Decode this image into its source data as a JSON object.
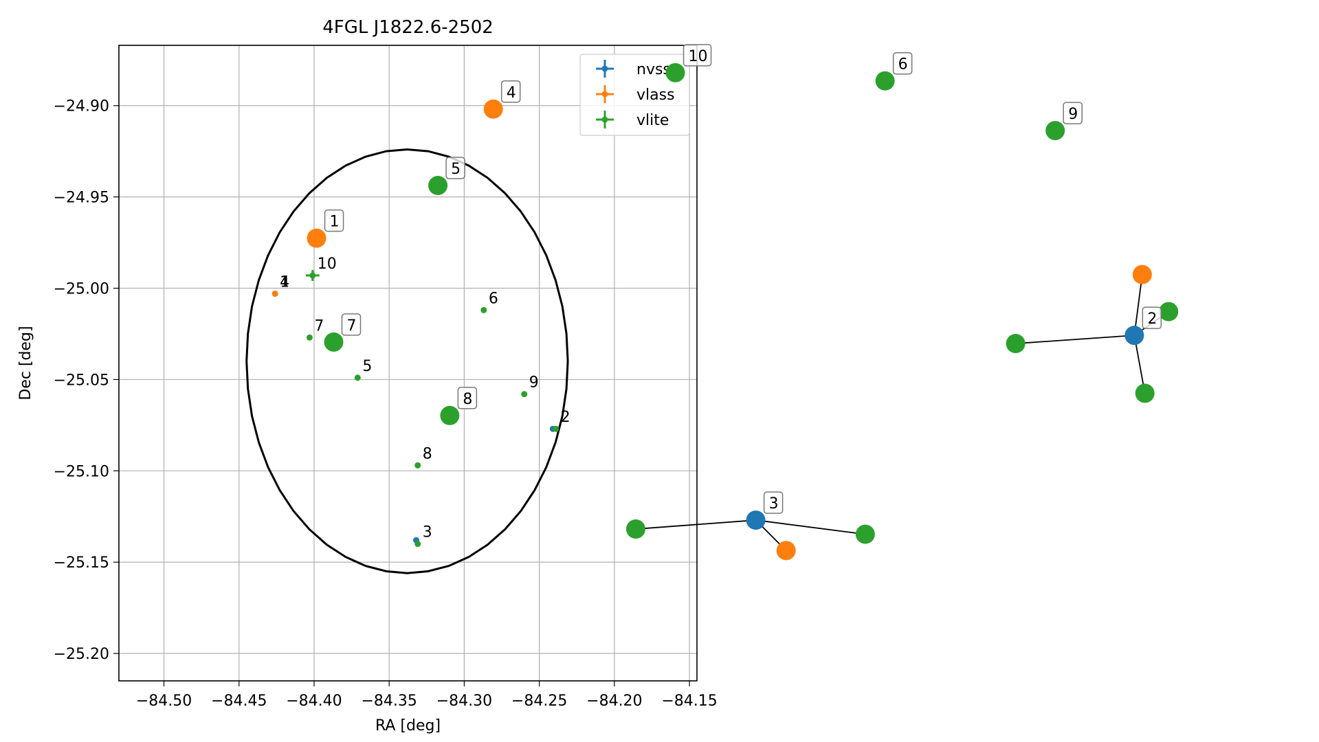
{
  "chart_data": [
    {
      "type": "scatter",
      "title": "4FGL J1822.6-2502",
      "xlabel": "RA [deg]",
      "ylabel": "Dec [deg]",
      "xlim": [
        -84.53,
        -84.145
      ],
      "ylim": [
        -25.215,
        -24.867
      ],
      "xticks": [
        -84.5,
        -84.45,
        -84.4,
        -84.35,
        -84.3,
        -84.25,
        -84.2,
        -84.15
      ],
      "xtick_labels": [
        "−84.50",
        "−84.45",
        "−84.40",
        "−84.35",
        "−84.30",
        "−84.25",
        "−84.20",
        "−84.15"
      ],
      "yticks": [
        -24.9,
        -24.95,
        -25.0,
        -25.05,
        -25.1,
        -25.15,
        -25.2
      ],
      "ytick_labels": [
        "−24.90",
        "−24.95",
        "−25.00",
        "−25.05",
        "−25.10",
        "−25.15",
        "−25.20"
      ],
      "grid": true,
      "legend_position": "top-right",
      "ellipse": {
        "center_ra": -84.338,
        "center_dec": -25.04,
        "semi_ra": 0.107,
        "semi_dec": 0.116,
        "color": "#000000"
      },
      "series": [
        {
          "name": "nvss",
          "color": "#1f77b4",
          "points": [
            {
              "ra": -84.241,
              "dec": -25.077,
              "label": ""
            },
            {
              "ra": -84.332,
              "dec": -25.138,
              "label": ""
            }
          ]
        },
        {
          "name": "vlass",
          "color": "#ff7f0e",
          "points": [
            {
              "ra": -84.426,
              "dec": -25.003,
              "label": "1"
            },
            {
              "ra": -84.426,
              "dec": -25.003,
              "label": "4"
            }
          ]
        },
        {
          "name": "vlite",
          "color": "#2ca02c",
          "points": [
            {
              "ra": -84.401,
              "dec": -24.993,
              "label": "10"
            },
            {
              "ra": -84.403,
              "dec": -25.027,
              "label": "7"
            },
            {
              "ra": -84.371,
              "dec": -25.049,
              "label": "5"
            },
            {
              "ra": -84.287,
              "dec": -25.012,
              "label": "6"
            },
            {
              "ra": -84.26,
              "dec": -25.058,
              "label": "9"
            },
            {
              "ra": -84.239,
              "dec": -25.077,
              "label": "2"
            },
            {
              "ra": -84.331,
              "dec": -25.097,
              "label": "8"
            },
            {
              "ra": -84.331,
              "dec": -25.14,
              "label": "3"
            }
          ]
        }
      ]
    },
    {
      "type": "network",
      "edges": [
        [
          0,
          1
        ],
        [
          1,
          2
        ],
        [
          1,
          3
        ],
        [
          1,
          4
        ],
        [
          5,
          6
        ],
        [
          6,
          7
        ],
        [
          6,
          8
        ]
      ],
      "nodes": [
        {
          "label": "2",
          "color": "#ff7f0e",
          "x": 0.866,
          "y": 0.37
        },
        {
          "label": "2",
          "color": "#1f77b4",
          "x": 0.86,
          "y": 0.452
        },
        {
          "label": "2",
          "color": "#2ca02c",
          "x": 0.886,
          "y": 0.42
        },
        {
          "label": "2",
          "color": "#2ca02c",
          "x": 0.77,
          "y": 0.463
        },
        {
          "label": "2",
          "color": "#2ca02c",
          "x": 0.868,
          "y": 0.53
        },
        {
          "label": "3",
          "color": "#2ca02c",
          "x": 0.482,
          "y": 0.713
        },
        {
          "label": "3",
          "color": "#1f77b4",
          "x": 0.573,
          "y": 0.701
        },
        {
          "label": "3",
          "color": "#ff7f0e",
          "x": 0.596,
          "y": 0.742
        },
        {
          "label": "3",
          "color": "#2ca02c",
          "x": 0.656,
          "y": 0.72
        },
        {
          "label": "10",
          "color": "#2ca02c",
          "x": 0.512,
          "y": 0.098
        },
        {
          "label": "6",
          "color": "#2ca02c",
          "x": 0.671,
          "y": 0.109
        },
        {
          "label": "4",
          "color": "#ff7f0e",
          "x": 0.374,
          "y": 0.147
        },
        {
          "label": "9",
          "color": "#2ca02c",
          "x": 0.8,
          "y": 0.176
        },
        {
          "label": "5",
          "color": "#2ca02c",
          "x": 0.332,
          "y": 0.25
        },
        {
          "label": "1",
          "color": "#ff7f0e",
          "x": 0.24,
          "y": 0.321
        },
        {
          "label": "7",
          "color": "#2ca02c",
          "x": 0.253,
          "y": 0.461
        },
        {
          "label": "8",
          "color": "#2ca02c",
          "x": 0.341,
          "y": 0.56
        }
      ],
      "labelled_nodes": [
        1,
        6,
        9,
        10,
        11,
        12,
        13,
        14,
        15,
        16
      ]
    }
  ]
}
